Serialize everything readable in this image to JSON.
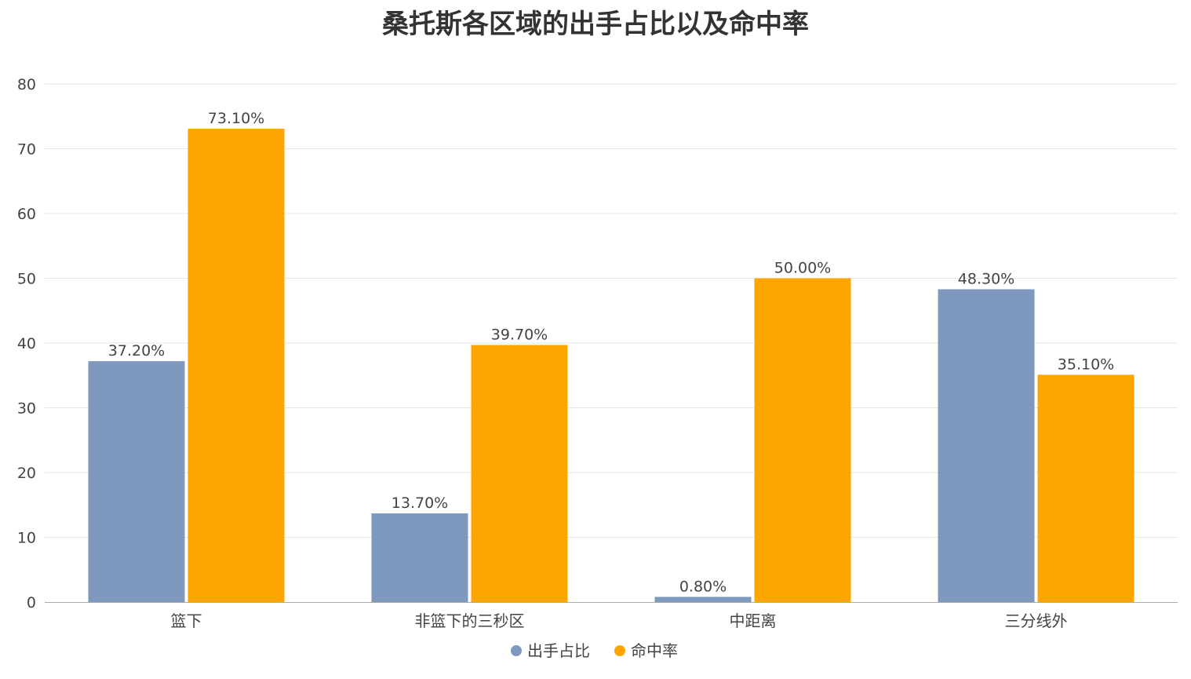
{
  "chart_data": {
    "type": "bar",
    "title": "桑托斯各区域的出手占比以及命中率",
    "categories": [
      "篮下",
      "非篮下的三秒区",
      "中距离",
      "三分线外"
    ],
    "series": [
      {
        "name": "出手占比",
        "values": [
          37.2,
          13.7,
          0.8,
          48.3
        ],
        "labels": [
          "37.20%",
          "13.70%",
          "0.80%",
          "48.30%"
        ],
        "color": "#7f99be"
      },
      {
        "name": "命中率",
        "values": [
          73.1,
          39.7,
          50.0,
          35.1
        ],
        "labels": [
          "73.10%",
          "39.70%",
          "50.00%",
          "35.10%"
        ],
        "color": "#ffa500"
      }
    ],
    "ylim": [
      0,
      80
    ],
    "yticks": [
      0,
      10,
      20,
      30,
      40,
      50,
      60,
      70,
      80
    ],
    "grid": true,
    "legend_position": "bottom"
  },
  "colors": {
    "grid": "#e6e6e6",
    "axis": "#aaaaaa"
  }
}
